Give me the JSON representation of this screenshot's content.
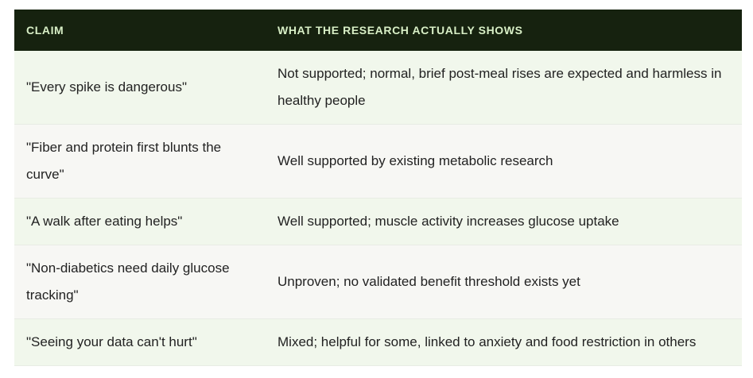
{
  "table": {
    "header": [
      "CLAIM",
      "WHAT THE RESEARCH ACTUALLY SHOWS"
    ],
    "rows": [
      [
        "\"Every spike is dangerous\"",
        "Not supported; normal, brief post-meal rises are expected and harmless in healthy people"
      ],
      [
        "\"Fiber and protein first blunts the curve\"",
        "Well supported by existing metabolic research"
      ],
      [
        "\"A walk after eating helps\"",
        "Well supported; muscle activity increases glucose uptake"
      ],
      [
        "\"Non-diabetics need daily glucose tracking\"",
        "Unproven; no validated benefit threshold exists yet"
      ],
      [
        "\"Seeing your data can't hurt\"",
        "Mixed; helpful for some, linked to anxiety and food restriction in others"
      ]
    ]
  }
}
